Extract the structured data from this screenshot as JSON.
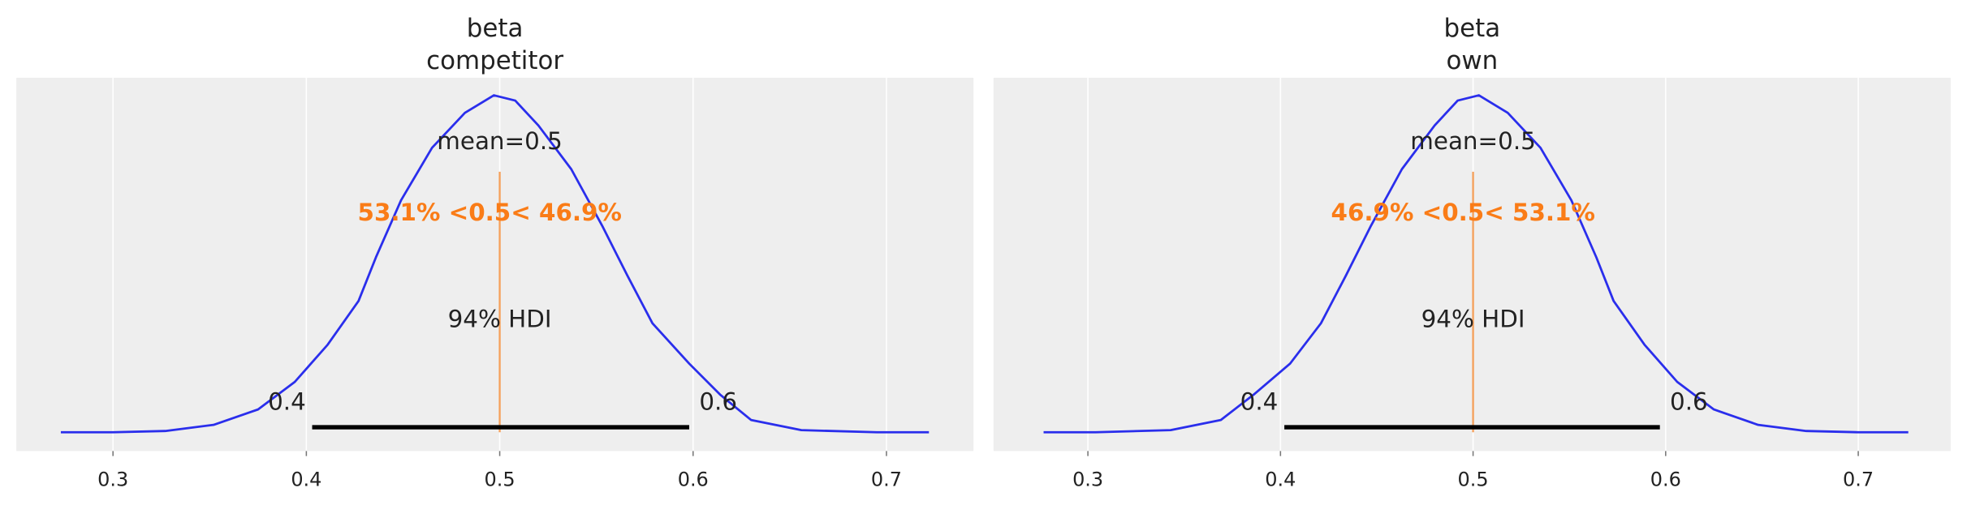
{
  "chart_data": [
    {
      "type": "line",
      "title": [
        "beta",
        "competitor"
      ],
      "xlim": [
        0.25,
        0.745
      ],
      "xticks": [
        0.3,
        0.4,
        0.5,
        0.6,
        0.7
      ],
      "xtick_labels": [
        "0.3",
        "0.4",
        "0.5",
        "0.6",
        "0.7"
      ],
      "grid": true,
      "kde": {
        "x": [
          0.273,
          0.3,
          0.327,
          0.352,
          0.375,
          0.394,
          0.411,
          0.427,
          0.436,
          0.449,
          0.465,
          0.482,
          0.497,
          0.508,
          0.52,
          0.537,
          0.553,
          0.566,
          0.579,
          0.598,
          0.614,
          0.63,
          0.656,
          0.695,
          0.722
        ],
        "y": [
          0,
          0,
          0.03,
          0.17,
          0.52,
          1.15,
          2.0,
          3.0,
          4.0,
          5.3,
          6.5,
          7.3,
          7.7,
          7.58,
          7.01,
          6.01,
          4.72,
          3.58,
          2.49,
          1.57,
          0.86,
          0.28,
          0.05,
          0,
          0
        ]
      },
      "mean_label": "mean=0.5",
      "ref_val": 0.5,
      "ref_label": "53.1% <0.5< 46.9%",
      "hdi": [
        0.403,
        0.598
      ],
      "hdi_labels": [
        "0.4",
        "0.6"
      ],
      "hdi_title": "94% HDI"
    },
    {
      "type": "line",
      "title": [
        "beta",
        "own"
      ],
      "xlim": [
        0.251,
        0.748
      ],
      "xticks": [
        0.3,
        0.4,
        0.5,
        0.6,
        0.7
      ],
      "xtick_labels": [
        "0.3",
        "0.4",
        "0.5",
        "0.6",
        "0.7"
      ],
      "grid": true,
      "kde": {
        "x": [
          0.277,
          0.304,
          0.343,
          0.369,
          0.386,
          0.405,
          0.421,
          0.434,
          0.447,
          0.463,
          0.48,
          0.492,
          0.503,
          0.518,
          0.535,
          0.551,
          0.564,
          0.573,
          0.589,
          0.606,
          0.625,
          0.648,
          0.673,
          0.7,
          0.726
        ],
        "y": [
          0,
          0,
          0.05,
          0.28,
          0.86,
          1.57,
          2.49,
          3.58,
          4.72,
          6.01,
          7.01,
          7.58,
          7.7,
          7.3,
          6.5,
          5.3,
          4.0,
          3.0,
          2.0,
          1.15,
          0.52,
          0.17,
          0.03,
          0,
          0
        ]
      },
      "mean_label": "mean=0.5",
      "ref_val": 0.5,
      "ref_label": "46.9% <0.5< 53.1%",
      "hdi": [
        0.402,
        0.597
      ],
      "hdi_labels": [
        "0.4",
        "0.6"
      ],
      "hdi_title": "94% HDI"
    }
  ],
  "colors": {
    "kde": "#2a2eec",
    "ref": "#fa7c17",
    "ref_line": "#f5a05a",
    "hdi": "#000000",
    "panel_bg": "#eeeeee",
    "grid": "#ffffff",
    "text": "#222222"
  }
}
